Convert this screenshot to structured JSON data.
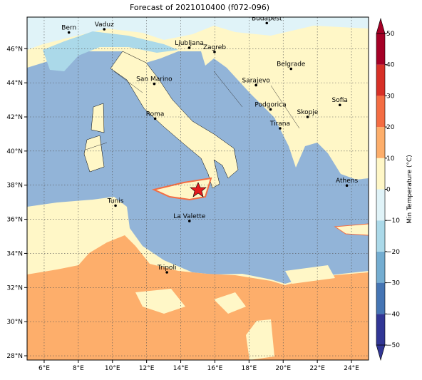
{
  "title": "Forecast of 2021010400 (f072-096)",
  "map": {
    "lon_range": [
      5,
      25
    ],
    "lat_range": [
      27.75,
      47.85
    ],
    "xticks": [
      {
        "value": 6,
        "label": "6°E"
      },
      {
        "value": 8,
        "label": "8°E"
      },
      {
        "value": 10,
        "label": "10°E"
      },
      {
        "value": 12,
        "label": "12°E"
      },
      {
        "value": 14,
        "label": "14°E"
      },
      {
        "value": 16,
        "label": "16°E"
      },
      {
        "value": 18,
        "label": "18°E"
      },
      {
        "value": 20,
        "label": "20°E"
      },
      {
        "value": 22,
        "label": "22°E"
      },
      {
        "value": 24,
        "label": "24°E"
      }
    ],
    "yticks": [
      {
        "value": 28,
        "label": "28°N"
      },
      {
        "value": 30,
        "label": "30°N"
      },
      {
        "value": 32,
        "label": "32°N"
      },
      {
        "value": 34,
        "label": "34°N"
      },
      {
        "value": 36,
        "label": "36°N"
      },
      {
        "value": 38,
        "label": "38°N"
      },
      {
        "value": 40,
        "label": "40°N"
      },
      {
        "value": 42,
        "label": "42°N"
      },
      {
        "value": 44,
        "label": "44°N"
      },
      {
        "value": 46,
        "label": "46°N"
      }
    ],
    "cities": [
      {
        "name": "Bern",
        "lon": 7.45,
        "lat": 46.95
      },
      {
        "name": "Vaduz",
        "lon": 9.52,
        "lat": 47.14
      },
      {
        "name": "Budapest",
        "lon": 19.04,
        "lat": 47.5
      },
      {
        "name": "Ljubljana",
        "lon": 14.5,
        "lat": 46.05
      },
      {
        "name": "Zagreb",
        "lon": 15.98,
        "lat": 45.81
      },
      {
        "name": "Belgrade",
        "lon": 20.46,
        "lat": 44.82
      },
      {
        "name": "San Marino",
        "lon": 12.45,
        "lat": 43.94
      },
      {
        "name": "Sarajevo",
        "lon": 18.41,
        "lat": 43.86
      },
      {
        "name": "Sofia",
        "lon": 23.32,
        "lat": 42.7
      },
      {
        "name": "Roma",
        "lon": 12.5,
        "lat": 41.9
      },
      {
        "name": "Podgorica",
        "lon": 19.26,
        "lat": 42.44
      },
      {
        "name": "Skopje",
        "lon": 21.43,
        "lat": 42.0
      },
      {
        "name": "Tirana",
        "lon": 19.82,
        "lat": 41.33
      },
      {
        "name": "Athens",
        "lon": 23.73,
        "lat": 37.98
      },
      {
        "name": "Tunis",
        "lon": 10.18,
        "lat": 36.8
      },
      {
        "name": "La Valette",
        "lon": 14.51,
        "lat": 35.9
      },
      {
        "name": "Tripoli",
        "lon": 13.19,
        "lat": 32.89
      }
    ]
  },
  "colorbar": {
    "label": "Min Temperature (°C)",
    "lim": [
      -50,
      50
    ],
    "ticks": [
      {
        "value": -50,
        "label": "−50"
      },
      {
        "value": -40,
        "label": "−40"
      },
      {
        "value": -30,
        "label": "−30"
      },
      {
        "value": -20,
        "label": "−20"
      },
      {
        "value": -10,
        "label": "−10"
      },
      0,
      10,
      20,
      30,
      40,
      50
    ],
    "colors": [
      "#313695",
      "#4575b4",
      "#74add1",
      "#abd9e9",
      "#e0f3f8",
      "#fff7c7",
      "#fdae6b",
      "#f46d43",
      "#d73027",
      "#a50026"
    ]
  }
}
